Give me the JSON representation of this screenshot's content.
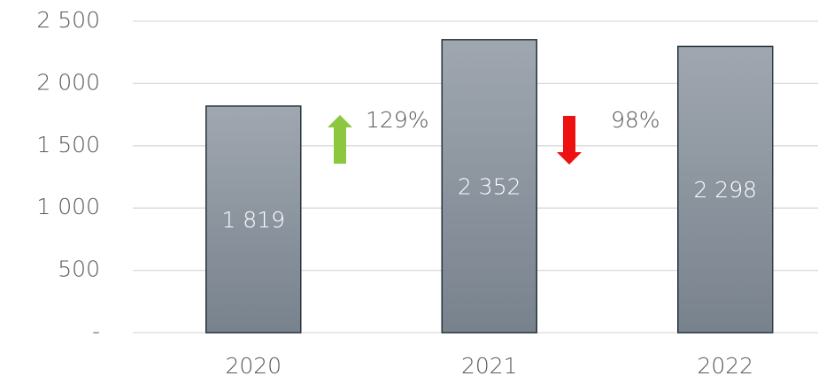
{
  "chart_data": {
    "type": "bar",
    "categories": [
      "2020",
      "2021",
      "2022"
    ],
    "values": [
      1819,
      2352,
      2298
    ],
    "value_labels": [
      "1 819",
      "2 352",
      "2 298"
    ],
    "ylim": [
      0,
      2500
    ],
    "yticks": [
      {
        "value": 0,
        "label": "-"
      },
      500,
      {
        "value": 1000,
        "label": "1 000"
      },
      {
        "value": 1500,
        "label": "1 500"
      },
      {
        "value": 2000,
        "label": "2 000"
      },
      {
        "value": 2500,
        "label": "2 500"
      }
    ],
    "grid": true,
    "annotations": [
      "129%",
      "98%"
    ]
  }
}
